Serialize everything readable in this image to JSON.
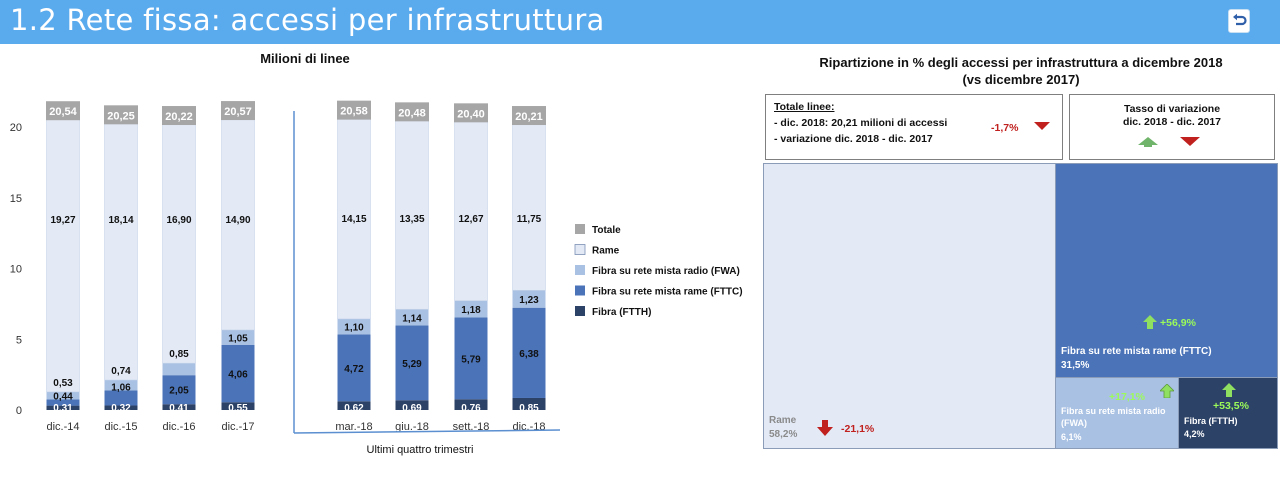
{
  "header": {
    "title": "1.2 Rete fissa: accessi per infrastruttura",
    "back_icon": "return-arrow-icon"
  },
  "colors": {
    "header_bg": "#5aaaee",
    "totale": "#a6a6a6",
    "rame": "#e3eaf6",
    "fwa": "#a9c1e3",
    "fttc": "#4a73b8",
    "ftth": "#2d4267",
    "arrow_up": "#7fd858",
    "arrow_down": "#c0211e",
    "positive_text": "#9bfb59"
  },
  "chart_data": [
    {
      "type": "bar",
      "stacked": true,
      "title": "Milioni di linee",
      "categories": [
        "dic.-14",
        "dic.-15",
        "dic.-16",
        "dic.-17",
        "mar.-18",
        "giu.-18",
        "sett.-18",
        "dic.-18"
      ],
      "ylim": [
        0,
        22
      ],
      "yticks": [
        0,
        5,
        10,
        15,
        20
      ],
      "group_label": "Ultimi quattro trimestri",
      "series": [
        {
          "name": "Fibra (FTTH)",
          "color": "#2d4267",
          "values": [
            0.31,
            0.32,
            0.41,
            0.55,
            0.62,
            0.69,
            0.76,
            0.85
          ]
        },
        {
          "name": "Fibra su rete mista rame (FTTC)",
          "color": "#4a73b8",
          "values": [
            0.44,
            1.06,
            2.05,
            4.06,
            4.72,
            5.29,
            5.79,
            6.38
          ]
        },
        {
          "name": "Fibra su rete mista radio (FWA)",
          "color": "#a9c1e3",
          "values": [
            0.53,
            0.74,
            0.85,
            1.05,
            1.1,
            1.14,
            1.18,
            1.23
          ]
        },
        {
          "name": "Rame",
          "color": "#e3eaf6",
          "values": [
            19.27,
            18.14,
            16.9,
            14.9,
            14.15,
            13.35,
            12.67,
            11.75
          ]
        }
      ],
      "totals": {
        "name": "Totale",
        "color": "#a6a6a6",
        "values": [
          "20,54",
          "20,25",
          "20,22",
          "20,57",
          "20,58",
          "20,48",
          "20,40",
          "20,21"
        ]
      },
      "legend": [
        "Totale",
        "Rame",
        "Fibra su rete mista radio (FWA)",
        "Fibra su rete mista rame (FTTC)",
        "Fibra (FTTH)"
      ],
      "legend_position": "right"
    },
    {
      "type": "treemap",
      "title_line1": "Ripartizione in % degli accessi per infrastruttura a dicembre 2018",
      "title_line2": "(vs dicembre 2017)",
      "items": [
        {
          "name": "Rame",
          "share": "58,2%",
          "change": "-21,1%",
          "direction": "down"
        },
        {
          "name": "Fibra su rete mista rame (FTTC)",
          "share": "31,5%",
          "change": "+56,9%",
          "direction": "up"
        },
        {
          "name": "Fibra su rete mista radio (FWA)",
          "share": "6,1%",
          "change": "+17,1%",
          "direction": "up"
        },
        {
          "name": "Fibra (FTTH)",
          "share": "4,2%",
          "change": "+53,5%",
          "direction": "up"
        }
      ]
    }
  ],
  "summary_box": {
    "heading": "Totale linee:",
    "line1": "- dic. 2018: 20,21 milioni di accessi",
    "line2": "- variazione dic. 2018 - dic. 2017",
    "change": "-1,7%"
  },
  "legend_box": {
    "title": "Tasso di variazione",
    "period": "dic. 2018 - dic. 2017"
  },
  "treemap_labels": {
    "rame_name": "Rame",
    "rame_share": "58,2%",
    "rame_change": "-21,1%",
    "fttc_name": "Fibra su rete mista rame (FTTC)",
    "fttc_share": "31,5%",
    "fttc_change": "+56,9%",
    "fwa_name_1": "Fibra su rete mista radio",
    "fwa_name_2": "(FWA)",
    "fwa_share": "6,1%",
    "fwa_change": "+17,1%",
    "ftth_name": "Fibra (FTTH)",
    "ftth_share": "4,2%",
    "ftth_change": "+53,5%"
  }
}
